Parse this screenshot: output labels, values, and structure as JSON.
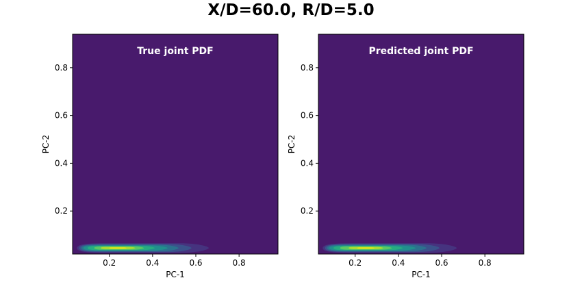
{
  "figure": {
    "suptitle": "X/D=60.0, R/D=5.0"
  },
  "chart_data": [
    {
      "type": "heatmap",
      "subtype": "filled-contour",
      "title": "True joint PDF",
      "xlabel": "PC-1",
      "ylabel": "PC-2",
      "xlim": [
        0.03,
        0.98
      ],
      "ylim": [
        0.02,
        0.94
      ],
      "xticks": [
        0.2,
        0.4,
        0.6,
        0.8
      ],
      "yticks": [
        0.2,
        0.4,
        0.6,
        0.8
      ],
      "colormap": "viridis",
      "grid": false,
      "background_color": "#481a6c",
      "title_color": "#ffffff",
      "density_peak": {
        "pc1": 0.25,
        "pc2": 0.045
      },
      "levels": [
        {
          "color": "#46337f",
          "pc1": [
            0.05,
            0.66
          ],
          "pc2": [
            0.025,
            0.065
          ]
        },
        {
          "color": "#3b528b",
          "pc1": [
            0.06,
            0.58
          ],
          "pc2": [
            0.028,
            0.062
          ]
        },
        {
          "color": "#2c728e",
          "pc1": [
            0.07,
            0.52
          ],
          "pc2": [
            0.031,
            0.059
          ]
        },
        {
          "color": "#21908d",
          "pc1": [
            0.08,
            0.47
          ],
          "pc2": [
            0.034,
            0.056
          ]
        },
        {
          "color": "#27ad81",
          "pc1": [
            0.1,
            0.41
          ],
          "pc2": [
            0.036,
            0.054
          ]
        },
        {
          "color": "#5cc863",
          "pc1": [
            0.13,
            0.36
          ],
          "pc2": [
            0.038,
            0.052
          ]
        },
        {
          "color": "#aadc32",
          "pc1": [
            0.16,
            0.32
          ],
          "pc2": [
            0.04,
            0.05
          ]
        },
        {
          "color": "#e0e51c",
          "pc1": [
            0.2,
            0.28
          ],
          "pc2": [
            0.042,
            0.048
          ]
        }
      ]
    },
    {
      "type": "heatmap",
      "subtype": "filled-contour",
      "title": "Predicted joint PDF",
      "xlabel": "PC-1",
      "ylabel": "PC-2",
      "xlim": [
        0.03,
        0.98
      ],
      "ylim": [
        0.02,
        0.94
      ],
      "xticks": [
        0.2,
        0.4,
        0.6,
        0.8
      ],
      "yticks": [
        0.2,
        0.4,
        0.6,
        0.8
      ],
      "colormap": "viridis",
      "grid": false,
      "background_color": "#481a6c",
      "title_color": "#ffffff",
      "density_peak": {
        "pc1": 0.26,
        "pc2": 0.045
      },
      "levels": [
        {
          "color": "#46337f",
          "pc1": [
            0.05,
            0.67
          ],
          "pc2": [
            0.025,
            0.065
          ]
        },
        {
          "color": "#3b528b",
          "pc1": [
            0.06,
            0.59
          ],
          "pc2": [
            0.028,
            0.062
          ]
        },
        {
          "color": "#2c728e",
          "pc1": [
            0.07,
            0.53
          ],
          "pc2": [
            0.031,
            0.059
          ]
        },
        {
          "color": "#21908d",
          "pc1": [
            0.08,
            0.48
          ],
          "pc2": [
            0.034,
            0.056
          ]
        },
        {
          "color": "#27ad81",
          "pc1": [
            0.1,
            0.42
          ],
          "pc2": [
            0.036,
            0.054
          ]
        },
        {
          "color": "#5cc863",
          "pc1": [
            0.13,
            0.37
          ],
          "pc2": [
            0.038,
            0.052
          ]
        },
        {
          "color": "#aadc32",
          "pc1": [
            0.17,
            0.33
          ],
          "pc2": [
            0.04,
            0.05
          ]
        },
        {
          "color": "#e0e51c",
          "pc1": [
            0.21,
            0.29
          ],
          "pc2": [
            0.042,
            0.048
          ]
        }
      ]
    }
  ]
}
